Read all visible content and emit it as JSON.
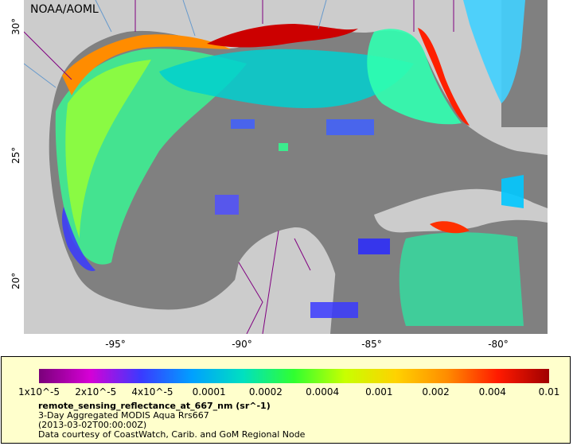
{
  "watermark": "NOAA/AOML",
  "axes": {
    "lat_ticks": [
      "30°",
      "25°",
      "20°"
    ],
    "lon_ticks": [
      "-95°",
      "-90°",
      "-85°",
      "-80°"
    ]
  },
  "legend": {
    "colorbar_colors": [
      "#7a007a",
      "#d600d6",
      "#3a3aff",
      "#00a0ff",
      "#00e0c0",
      "#30ff30",
      "#c8ff00",
      "#ffd200",
      "#ff8c00",
      "#ff1a00",
      "#a00000"
    ],
    "tick_labels": [
      "1x10^-5",
      "2x10^-5",
      "4x10^-5",
      "0.0001",
      "0.0002",
      "0.0004",
      "0.001",
      "0.002",
      "0.004",
      "0.01"
    ],
    "variable": "remote_sensing_reflectance_at_667_nm (sr^-1)",
    "product": "3-Day Aggregated MODIS Aqua Rrs667",
    "date": "(2013-03-02T00:00:00Z)",
    "credit": "Data courtesy of CoastWatch, Carib. and GoM Regional Node"
  },
  "colors": {
    "land": "#cccccc",
    "no_data_ocean": "#808080",
    "borders": "#800080",
    "rivers": "#6699cc"
  }
}
